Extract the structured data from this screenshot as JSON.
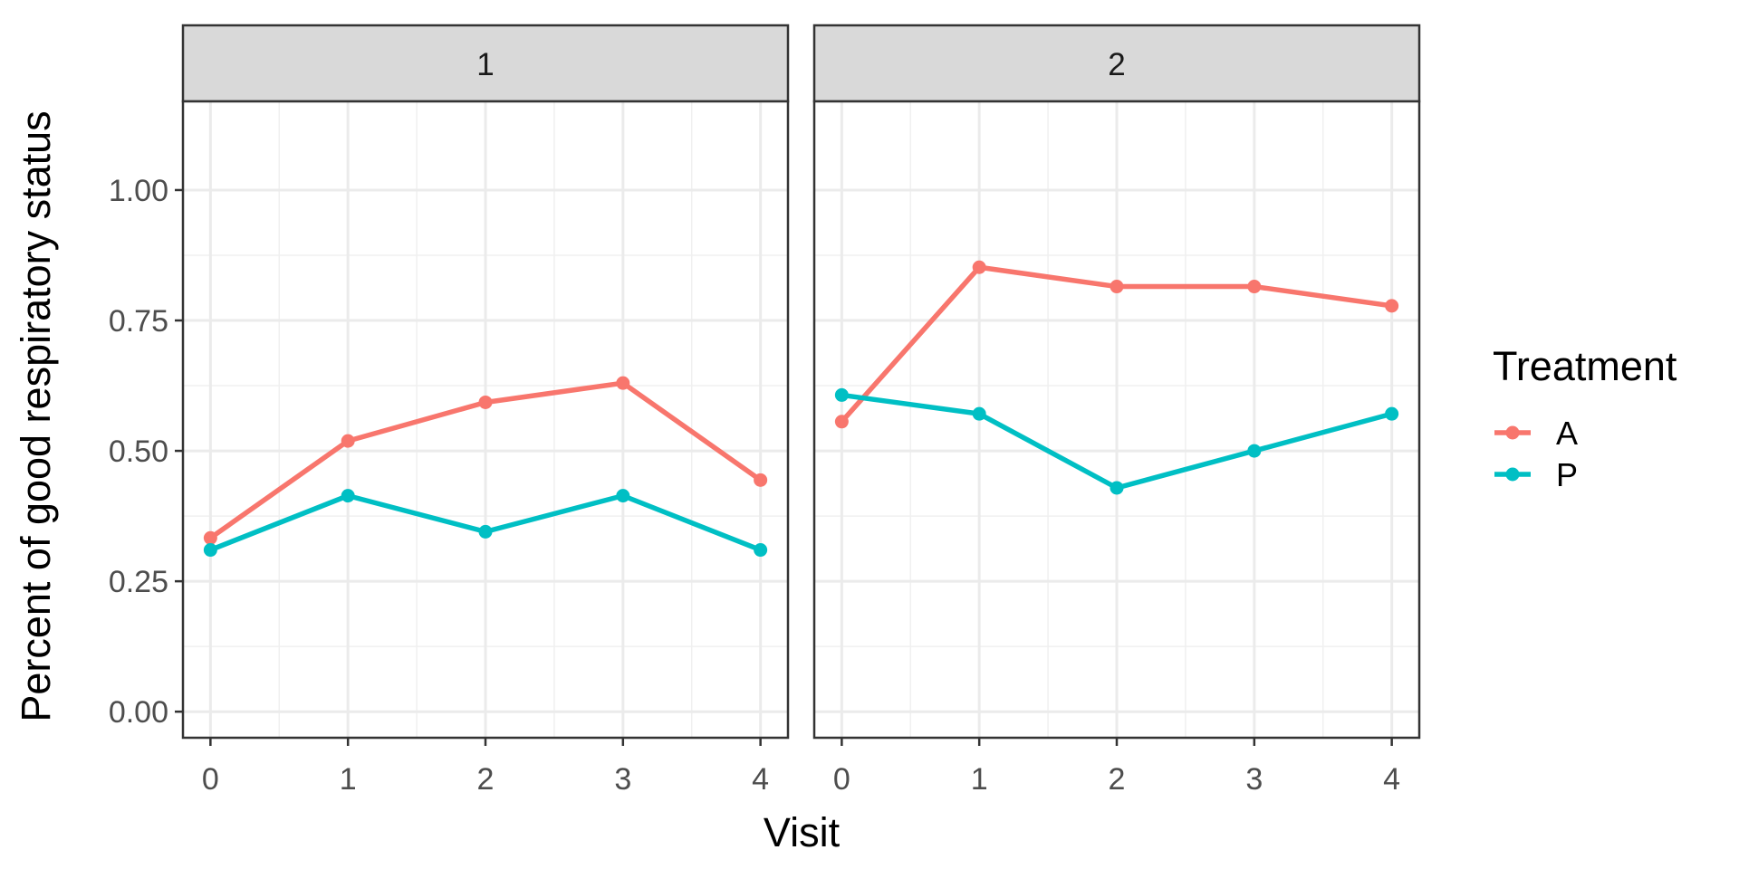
{
  "chart_data": {
    "type": "line",
    "xlabel": "Visit",
    "ylabel": "Percent of good respiratory status",
    "legend_title": "Treatment",
    "legend_position": "right",
    "grid": true,
    "xlim": [
      -0.2,
      4.2
    ],
    "ylim": [
      -0.05,
      1.17
    ],
    "x_ticks": [
      "0",
      "1",
      "2",
      "3",
      "4"
    ],
    "y_ticks": [
      "0.00",
      "0.25",
      "0.50",
      "0.75",
      "1.00"
    ],
    "y_tick_values": [
      0,
      0.25,
      0.5,
      0.75,
      1.0
    ],
    "colors": {
      "A": "#F8766D",
      "P": "#00BFC4"
    },
    "panels": [
      {
        "label": "1",
        "x": [
          0,
          1,
          2,
          3,
          4
        ],
        "series": [
          {
            "name": "A",
            "values": [
              0.333,
              0.519,
              0.593,
              0.63,
              0.444
            ]
          },
          {
            "name": "P",
            "values": [
              0.31,
              0.414,
              0.345,
              0.414,
              0.31
            ]
          }
        ]
      },
      {
        "label": "2",
        "x": [
          0,
          1,
          2,
          3,
          4
        ],
        "series": [
          {
            "name": "A",
            "values": [
              0.556,
              0.852,
              0.815,
              0.815,
              0.778
            ]
          },
          {
            "name": "P",
            "values": [
              0.607,
              0.571,
              0.429,
              0.5,
              0.571
            ]
          }
        ]
      }
    ],
    "legend": [
      "A",
      "P"
    ]
  }
}
